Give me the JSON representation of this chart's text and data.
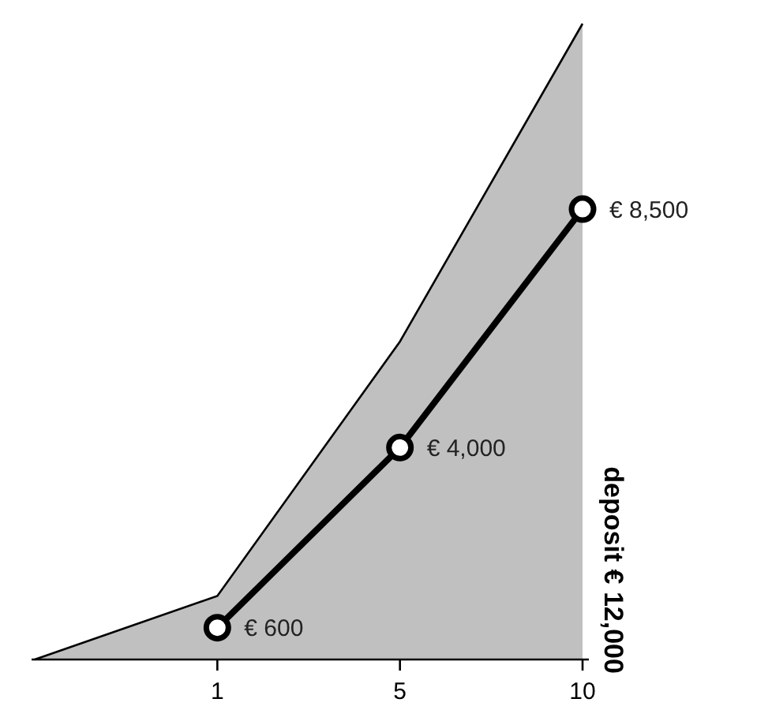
{
  "chart_data": {
    "type": "line",
    "categories": [
      null,
      "1",
      "5",
      "10"
    ],
    "tick_labels": "x",
    "line_style": "solid",
    "series": [
      {
        "type": "area",
        "color": "#c0c0c1",
        "values": [
          0,
          1200,
          6000,
          12000
        ]
      },
      {
        "color": "#000000",
        "marker": "circle",
        "values": [
          null,
          600,
          4000,
          8500
        ],
        "value_labels": [
          null,
          "€ 600",
          "€ 4,000",
          "€ 8,500"
        ]
      }
    ],
    "annotations": [
      "deposit € 12,000"
    ]
  }
}
